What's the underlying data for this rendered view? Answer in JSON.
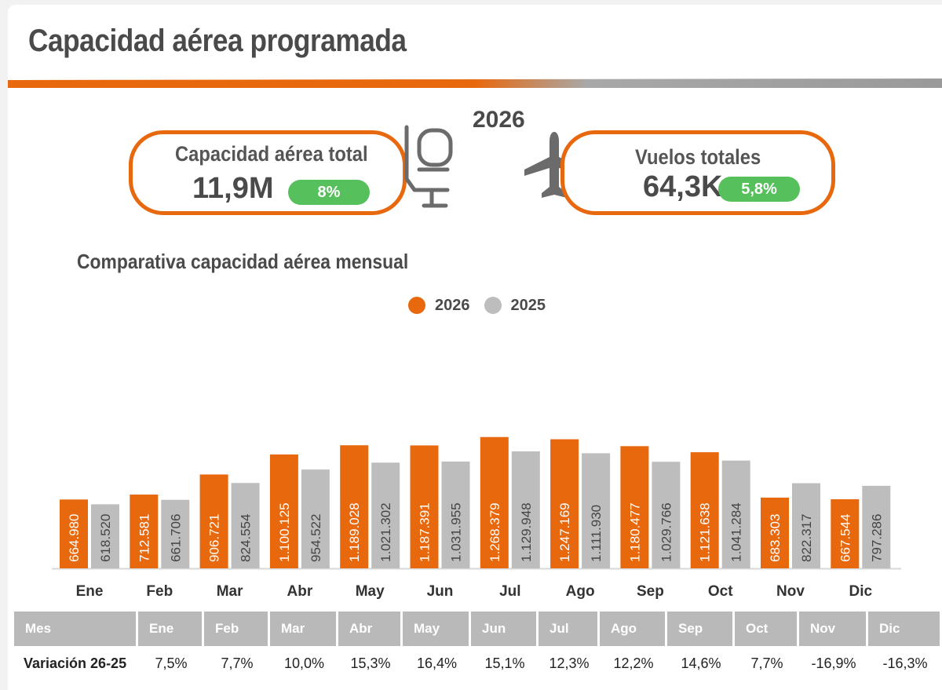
{
  "header": {
    "title": "Capacidad aérea programada",
    "year": "2026"
  },
  "kpis": [
    {
      "label": "Capacidad aérea total",
      "value": "11,9M",
      "change": "8%"
    },
    {
      "label": "Vuelos totales",
      "value": "64,3K",
      "change": "5,8%"
    }
  ],
  "icons": {
    "seat": "airline-seat-icon",
    "plane": "airplane-icon"
  },
  "colors": {
    "accent": "#e8680e",
    "series_2026": "#e8680e",
    "series_2025": "#bdbdbd",
    "positive_pill": "#56c05c",
    "table_header": "#b9b9b9"
  },
  "chart_data": {
    "type": "bar",
    "title": "Comparativa capacidad aérea mensual",
    "categories": [
      "Ene",
      "Feb",
      "Mar",
      "Abr",
      "May",
      "Jun",
      "Jul",
      "Ago",
      "Sep",
      "Oct",
      "Nov",
      "Dic"
    ],
    "series": [
      {
        "name": "2026",
        "values": [
          664980,
          712581,
          906721,
          1100125,
          1189028,
          1187391,
          1268379,
          1247169,
          1180477,
          1121638,
          683303,
          667544
        ],
        "labels": [
          "664.980",
          "712.581",
          "906.721",
          "1.100.125",
          "1.189.028",
          "1.187.391",
          "1.268.379",
          "1.247.169",
          "1.180.477",
          "1.121.638",
          "683.303",
          "667.544"
        ]
      },
      {
        "name": "2025",
        "values": [
          618520,
          661706,
          824554,
          954522,
          1021302,
          1031955,
          1129948,
          1111930,
          1029766,
          1041284,
          822317,
          797286
        ],
        "labels": [
          "618.520",
          "661.706",
          "824.554",
          "954.522",
          "1.021.302",
          "1.031.955",
          "1.129.948",
          "1.111.930",
          "1.029.766",
          "1.041.284",
          "822.317",
          "797.286"
        ]
      }
    ],
    "legend": "top-center",
    "ylim": [
      0,
      1350000
    ],
    "grid": false
  },
  "table": {
    "header_label": "Mes",
    "row_label": "Variación 26-25",
    "months": [
      "Ene",
      "Feb",
      "Mar",
      "Abr",
      "May",
      "Jun",
      "Jul",
      "Ago",
      "Sep",
      "Oct",
      "Nov",
      "Dic"
    ],
    "values": [
      "7,5%",
      "7,7%",
      "10,0%",
      "15,3%",
      "16,4%",
      "15,1%",
      "12,3%",
      "12,2%",
      "14,6%",
      "7,7%",
      "-16,9%",
      "-16,3%"
    ]
  }
}
